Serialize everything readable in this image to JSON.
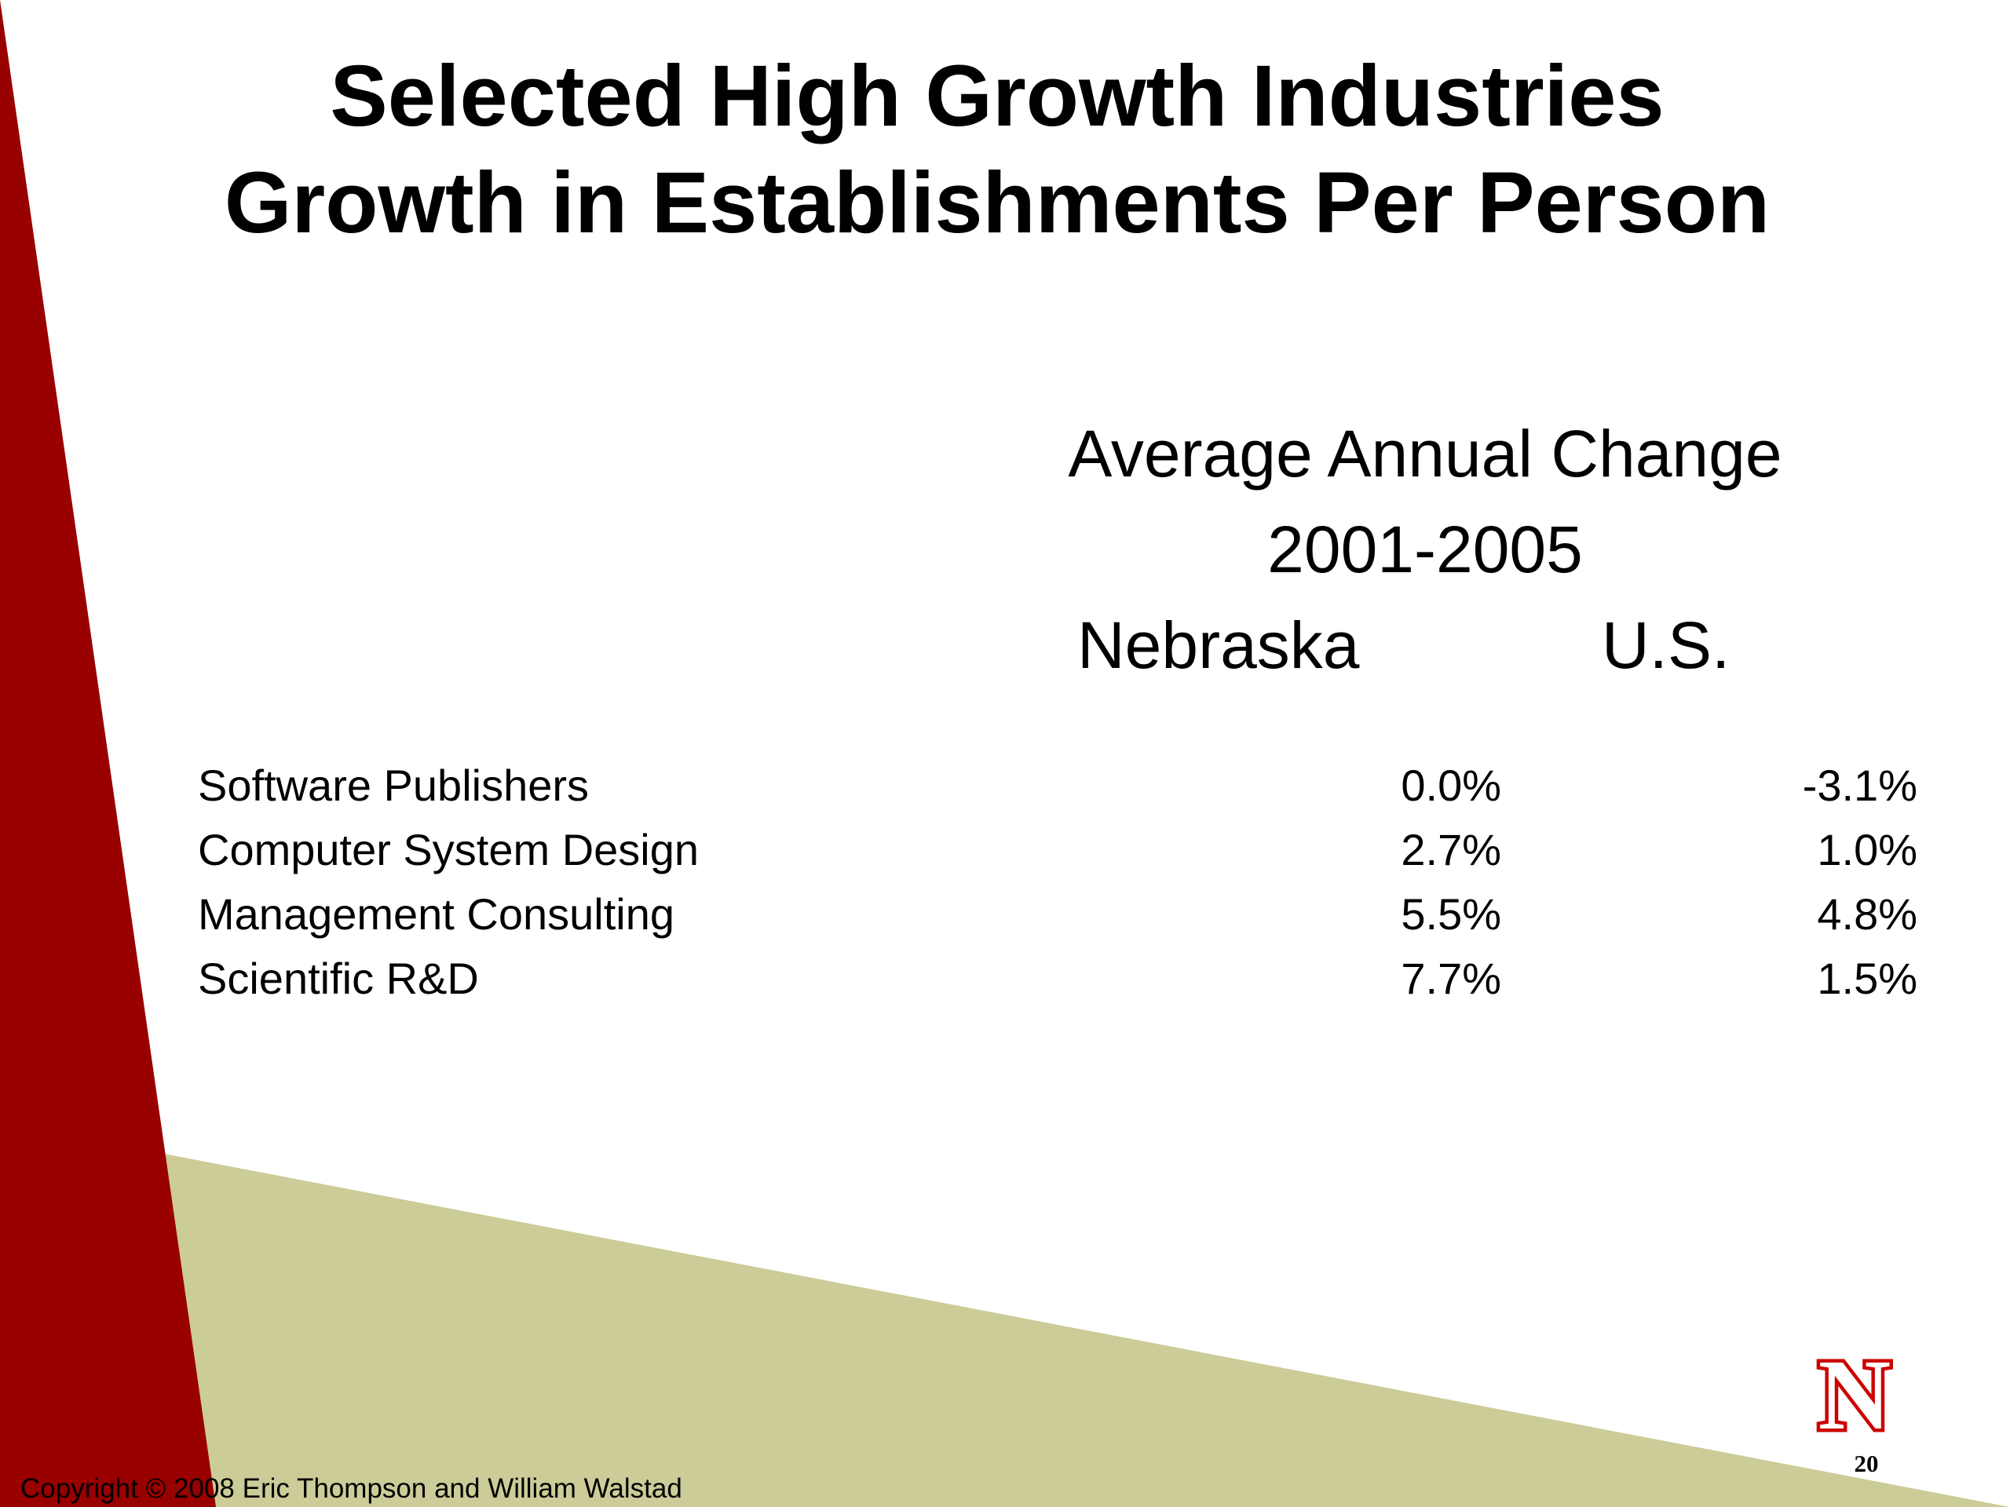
{
  "title": {
    "line1": "Selected High Growth Industries",
    "line2": "Growth in Establishments Per Person"
  },
  "table": {
    "header_line1": "Average Annual Change",
    "header_line2": "2001-2005",
    "columns": [
      "Nebraska",
      "U.S."
    ],
    "rows": [
      {
        "label": "Software Publishers",
        "nebraska": "0.0%",
        "us": "-3.1%"
      },
      {
        "label": "Computer System Design",
        "nebraska": "2.7%",
        "us": "1.0%"
      },
      {
        "label": "Management Consulting",
        "nebraska": "5.5%",
        "us": "4.8%"
      },
      {
        "label": "Scientific R&D",
        "nebraska": "7.7%",
        "us": "1.5%"
      }
    ]
  },
  "footer": {
    "copyright": "Copyright © 2008 Eric Thompson and William Walstad",
    "page_number": "20"
  },
  "logo": {
    "icon": "nebraska-n-logo-icon",
    "letter": "N"
  },
  "colors": {
    "red": "#990000",
    "khaki": "#cccc99",
    "background": "#ffffff",
    "text": "#000000"
  }
}
